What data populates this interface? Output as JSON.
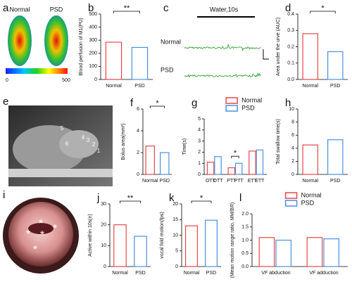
{
  "images": {
    "a": {
      "panel": "a",
      "labels": [
        "Normal",
        "PSD"
      ],
      "colorbar": [
        0,
        500
      ]
    },
    "c": {
      "panel": "c",
      "stimulus": "Water,10s",
      "labels": [
        "Normal",
        "PSD"
      ]
    },
    "e": {
      "panel": "e",
      "points": [
        "1",
        "2",
        "3",
        "4",
        "5",
        "6"
      ]
    },
    "i": {
      "panel": "i",
      "marks": [
        "*",
        "*",
        "*",
        "*",
        "*"
      ]
    }
  },
  "chart_data": [
    {
      "type": "bar",
      "panel": "b",
      "ylabel": "Blood perfusion of M1(PU)",
      "categories": [
        "Normal",
        "PSD"
      ],
      "values": [
        285,
        245
      ],
      "colors": [
        "#e8474a",
        "#4a90e2"
      ],
      "ylim": [
        0,
        500
      ],
      "yticks": [
        0,
        100,
        200,
        300,
        400,
        500
      ],
      "significance": "**"
    },
    {
      "type": "bar",
      "panel": "d",
      "ylabel": "Area under the urve (AUC)",
      "categories": [
        "Normal",
        "PSD"
      ],
      "values": [
        0.28,
        0.17
      ],
      "colors": [
        "#e8474a",
        "#4a90e2"
      ],
      "ylim": [
        0,
        0.4
      ],
      "yticks": [
        {
          "value": 0,
          "label": "0.0"
        },
        0.1,
        0.2,
        0.3,
        0.4
      ],
      "significance": "*"
    },
    {
      "type": "bar",
      "panel": "f",
      "ylabel": "Bolus area(mm²)",
      "categories": [
        "Normal",
        "PSD"
      ],
      "values": [
        2.6,
        2.0
      ],
      "colors": [
        "#e8474a",
        "#4a90e2"
      ],
      "ylim": [
        0,
        6
      ],
      "yticks": [
        0,
        2,
        4,
        6
      ],
      "significance": "*"
    },
    {
      "type": "grouped_bar",
      "panel": "g",
      "ylabel": "Time(s)",
      "categories": [
        "OTT",
        "PTT",
        "ETT"
      ],
      "series": [
        {
          "name": "Normal",
          "color": "#e8474a",
          "values": [
            1.1,
            0.6,
            2.1
          ]
        },
        {
          "name": "PSD",
          "color": "#4a90e2",
          "values": [
            1.6,
            1.0,
            2.2
          ]
        }
      ],
      "ylim": [
        0,
        5
      ],
      "yticks": [
        0,
        1,
        2,
        3,
        4,
        5
      ],
      "significance": [
        null,
        "*",
        null
      ],
      "legend": "top"
    },
    {
      "type": "bar",
      "panel": "h",
      "ylabel": "Total swallow time(s)",
      "categories": [
        "Normal",
        "PSD"
      ],
      "values": [
        4.5,
        5.3
      ],
      "colors": [
        "#e8474a",
        "#4a90e2"
      ],
      "ylim": [
        0,
        10
      ],
      "yticks": [
        0,
        2,
        4,
        6,
        8,
        10
      ]
    },
    {
      "type": "bar",
      "panel": "j",
      "ylabel": "Active within 10s(n)",
      "categories": [
        "Normal",
        "PSD"
      ],
      "values": [
        20,
        14.5
      ],
      "colors": [
        "#e8474a",
        "#4a90e2"
      ],
      "ylim": [
        0,
        30
      ],
      "yticks": [
        0,
        10,
        20,
        30
      ],
      "significance": "**"
    },
    {
      "type": "bar",
      "panel": "k",
      "ylabel": "vocal fold motion(fps)",
      "categories": [
        "Normal",
        "PSD"
      ],
      "values": [
        13,
        14.8
      ],
      "colors": [
        "#e8474a",
        "#4a90e2"
      ],
      "ylim": [
        0,
        20
      ],
      "yticks": [
        0,
        5,
        10,
        15,
        20
      ],
      "significance": "*"
    },
    {
      "type": "grouped_bar",
      "panel": "l",
      "ylabel": "(Mean motion range ratio, MM/BR)",
      "categories": [
        "VF abduction",
        "VF adduction"
      ],
      "series": [
        {
          "name": "Normal",
          "color": "#e8474a",
          "values": [
            1.1,
            1.1
          ]
        },
        {
          "name": "PSD",
          "color": "#4a90e2",
          "values": [
            1.0,
            1.05
          ]
        }
      ],
      "ylim": [
        0,
        2
      ],
      "yticks": [
        {
          "value": 0,
          "label": "0.0"
        },
        0.5,
        {
          "value": 1,
          "label": "1.0"
        },
        1.5,
        {
          "value": 2,
          "label": "2.0"
        }
      ],
      "legend": "top"
    }
  ]
}
